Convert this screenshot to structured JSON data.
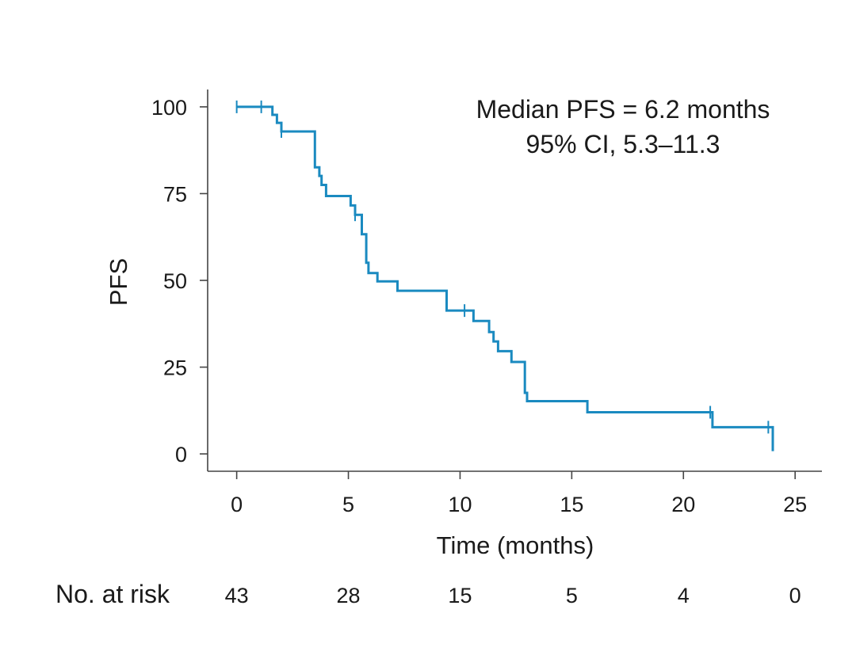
{
  "chart_data": {
    "type": "line",
    "title": "",
    "xlabel": "Time (months)",
    "ylabel": "PFS",
    "xlim": [
      -1.3,
      26.2
    ],
    "ylim": [
      -5,
      105
    ],
    "xticks": [
      0,
      5,
      10,
      15,
      20,
      25
    ],
    "yticks": [
      0,
      25,
      50,
      75,
      100
    ],
    "grid": false,
    "annotations": [
      "Median PFS = 6.2 months",
      "95% CI, 5.3–11.3"
    ],
    "series": [
      {
        "color": "#1a8ac0",
        "steps": [
          [
            0,
            100
          ],
          [
            1.5,
            100
          ],
          [
            1.6,
            97.7
          ],
          [
            1.8,
            95.4
          ],
          [
            2.0,
            92.9
          ],
          [
            3.4,
            92.9
          ],
          [
            3.5,
            82.6
          ],
          [
            3.7,
            80.1
          ],
          [
            3.8,
            77.5
          ],
          [
            4.0,
            74.3
          ],
          [
            5.0,
            74.3
          ],
          [
            5.1,
            71.6
          ],
          [
            5.3,
            68.9
          ],
          [
            5.6,
            63.3
          ],
          [
            5.8,
            55.1
          ],
          [
            5.9,
            52.1
          ],
          [
            6.2,
            52.1
          ],
          [
            6.3,
            49.7
          ],
          [
            7.1,
            49.7
          ],
          [
            7.2,
            47.0
          ],
          [
            9.3,
            47.0
          ],
          [
            9.4,
            41.3
          ],
          [
            10.5,
            41.3
          ],
          [
            10.6,
            38.3
          ],
          [
            11.2,
            38.3
          ],
          [
            11.3,
            35.1
          ],
          [
            11.5,
            32.4
          ],
          [
            11.7,
            29.6
          ],
          [
            12.2,
            29.6
          ],
          [
            12.3,
            26.5
          ],
          [
            12.8,
            26.5
          ],
          [
            12.9,
            17.6
          ],
          [
            13.0,
            15.2
          ],
          [
            15.6,
            15.2
          ],
          [
            15.7,
            12.0
          ],
          [
            21.2,
            12.0
          ],
          [
            21.3,
            7.7
          ],
          [
            24.0,
            7.7
          ],
          [
            24.0,
            0.8
          ]
        ],
        "censored": [
          [
            0,
            100
          ],
          [
            1.1,
            100
          ],
          [
            2.0,
            92.9
          ],
          [
            5.3,
            68.9
          ],
          [
            10.2,
            41.3
          ],
          [
            21.2,
            12.0
          ],
          [
            23.8,
            7.7
          ]
        ]
      }
    ],
    "risk_table": {
      "label": "No. at risk",
      "times": [
        0,
        5,
        10,
        15,
        20,
        25
      ],
      "values": [
        "43",
        "28",
        "15",
        "5",
        "4",
        "0"
      ]
    }
  }
}
